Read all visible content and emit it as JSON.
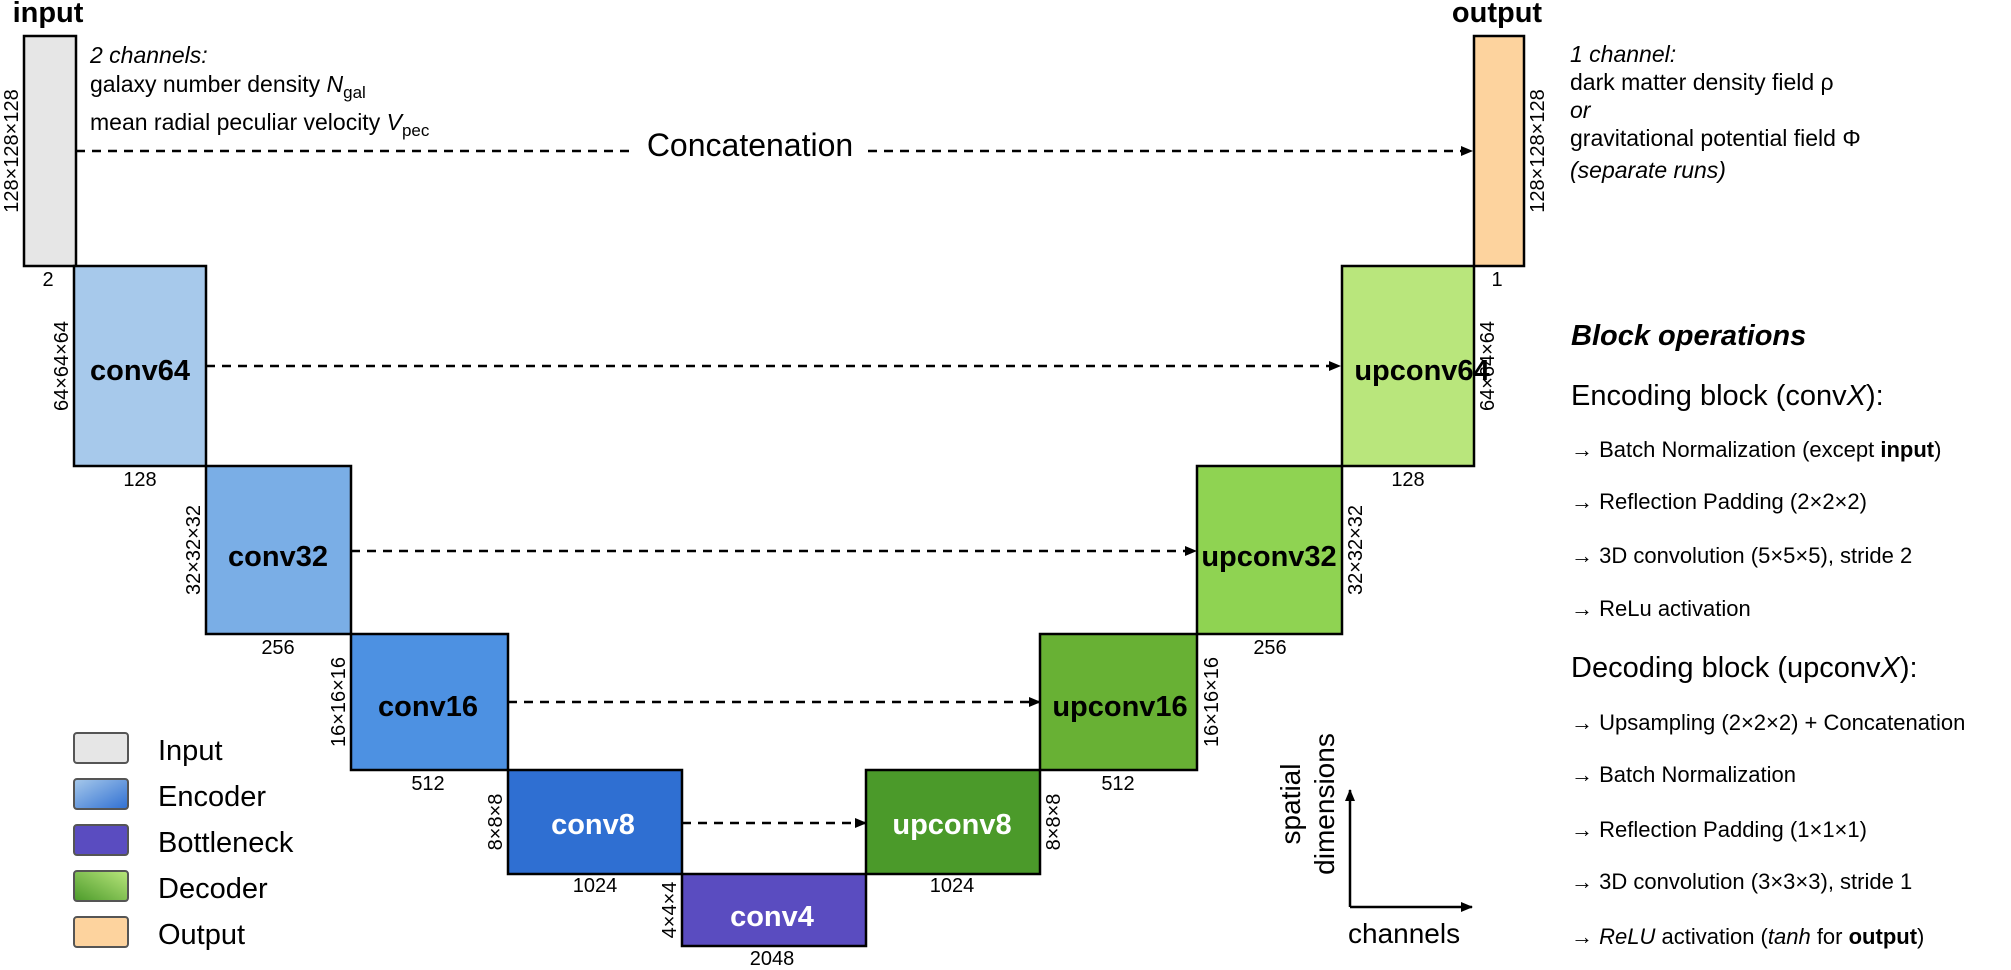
{
  "titles": {
    "input": "input",
    "output": "output"
  },
  "input_note": {
    "line1": "2 channels:",
    "line2": "galaxy number density ",
    "line2_var": "N",
    "line2_sub": "gal",
    "line3": "mean radial peculiar velocity ",
    "line3_var": "V",
    "line3_sub": "pec"
  },
  "output_note": {
    "line1": "1 channel:",
    "line2": "dark matter density field ρ",
    "line3": "or",
    "line4": "gravitational potential field Φ",
    "line5": "(separate runs)"
  },
  "concat_label": "Concatenation",
  "blocks": {
    "input": {
      "dims": "128×128×128",
      "channels": "2"
    },
    "conv64": {
      "label": "conv64",
      "dims": "64×64×64",
      "channels": "128"
    },
    "conv32": {
      "label": "conv32",
      "dims": "32×32×32",
      "channels": "256"
    },
    "conv16": {
      "label": "conv16",
      "dims": "16×16×16",
      "channels": "512"
    },
    "conv8": {
      "label": "conv8",
      "dims": "8×8×8",
      "channels": "1024"
    },
    "conv4": {
      "label": "conv4",
      "dims": "4×4×4",
      "channels": "2048"
    },
    "upconv8": {
      "label": "upconv8",
      "dims": "8×8×8",
      "channels": "1024"
    },
    "upconv16": {
      "label": "upconv16",
      "dims": "16×16×16",
      "channels": "512"
    },
    "upconv32": {
      "label": "upconv32",
      "dims": "32×32×32",
      "channels": "256"
    },
    "upconv64": {
      "label": "upconv64",
      "dims": "64×64×64",
      "channels": "128"
    },
    "output": {
      "dims": "128×128×128",
      "channels": "1"
    }
  },
  "legend": [
    "Input",
    "Encoder",
    "Bottleneck",
    "Decoder",
    "Output"
  ],
  "axes": {
    "y_line1": "spatial",
    "y_line2": "dimensions",
    "x": "channels"
  },
  "block_ops": {
    "title": "Block operations",
    "enc_title": "Encoding block (conv",
    "enc_var": "X",
    "enc_close": "):",
    "enc_1": "→ Batch Normalization (except ",
    "enc_1_bold": "input",
    "enc_1_close": ")",
    "enc_2": "→ Reflection Padding (2×2×2)",
    "enc_3": "→ 3D convolution (5×5×5), stride 2",
    "enc_4": "→ ReLu activation",
    "dec_title": "Decoding block (upconv",
    "dec_var": "X",
    "dec_close": "):",
    "dec_1": "→ Upsampling (2×2×2) + Concatenation",
    "dec_2": "→ Batch Normalization",
    "dec_3": "→ Reflection Padding (1×1×1)",
    "dec_4": "→ 3D convolution (3×3×3), stride 1",
    "dec_5_pre": "→ ",
    "dec_5_it": "ReLU",
    "dec_5_mid": " activation (",
    "dec_5_it2": "tanh",
    "dec_5_mid2": " for ",
    "dec_5_bold": "output",
    "dec_5_close": ")"
  },
  "colors": {
    "input": "#e6e6e6",
    "output": "#fdd39e",
    "conv64": "#a7c9eb",
    "conv32": "#7aaee6",
    "conv16": "#4d91e2",
    "conv8": "#2f6fd2",
    "conv4": "#5a4cc0",
    "upconv8": "#4b9a2a",
    "upconv16": "#68b134",
    "upconv32": "#8fd352",
    "upconv64": "#b9e67c"
  }
}
